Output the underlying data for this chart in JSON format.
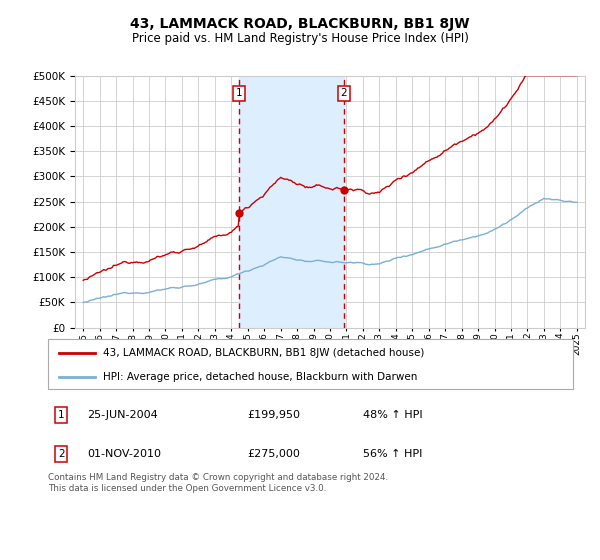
{
  "title": "43, LAMMACK ROAD, BLACKBURN, BB1 8JW",
  "subtitle": "Price paid vs. HM Land Registry's House Price Index (HPI)",
  "background_color": "#ffffff",
  "plot_bg_color": "#ffffff",
  "grid_color": "#cccccc",
  "sale1_date": 2004.48,
  "sale2_date": 2010.83,
  "sale1_price": 199950,
  "sale2_price": 275000,
  "sale1_label": "1",
  "sale2_label": "2",
  "sale1_text": "25-JUN-2004",
  "sale2_text": "01-NOV-2010",
  "sale1_pct": "48% ↑ HPI",
  "sale2_pct": "56% ↑ HPI",
  "legend_line1": "43, LAMMACK ROAD, BLACKBURN, BB1 8JW (detached house)",
  "legend_line2": "HPI: Average price, detached house, Blackburn with Darwen",
  "footer": "Contains HM Land Registry data © Crown copyright and database right 2024.\nThis data is licensed under the Open Government Licence v3.0.",
  "red_color": "#cc0000",
  "blue_color": "#7bafd4",
  "shade_color": "#ddeeff",
  "vline_color": "#cc0000",
  "ylim_min": 0,
  "ylim_max": 500000,
  "xlim_min": 1994.5,
  "xlim_max": 2025.5
}
